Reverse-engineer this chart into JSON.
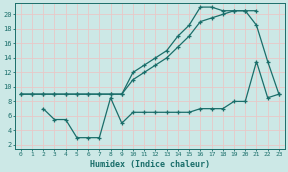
{
  "xlabel": "Humidex (Indice chaleur)",
  "bg_color": "#cce8e6",
  "grid_color": "#e8f8f8",
  "line_color": "#1a6e6a",
  "xlim": [
    -0.5,
    23.5
  ],
  "ylim": [
    1.5,
    21.5
  ],
  "xticks": [
    0,
    1,
    2,
    3,
    4,
    5,
    6,
    7,
    8,
    9,
    10,
    11,
    12,
    13,
    14,
    15,
    16,
    17,
    18,
    19,
    20,
    21,
    22,
    23
  ],
  "yticks": [
    2,
    4,
    6,
    8,
    10,
    12,
    14,
    16,
    18,
    20
  ],
  "line1_x": [
    0,
    1,
    2,
    3,
    4,
    5,
    6,
    7,
    8,
    9,
    10,
    11,
    12,
    13,
    14,
    15,
    16,
    17,
    18,
    19,
    20,
    21
  ],
  "line1_y": [
    9,
    9,
    9,
    9,
    9,
    9,
    9,
    9,
    9,
    9,
    12,
    13,
    14,
    15,
    17,
    18.5,
    21,
    21,
    20.5,
    20.5,
    20.5,
    20.5
  ],
  "line2_x": [
    0,
    1,
    2,
    3,
    4,
    5,
    6,
    7,
    8,
    9,
    10,
    11,
    12,
    13,
    14,
    15,
    16,
    17,
    18,
    19,
    20,
    21,
    22,
    23
  ],
  "line2_y": [
    9,
    9,
    9,
    9,
    9,
    9,
    9,
    9,
    9,
    9,
    11,
    12,
    13,
    14,
    15.5,
    17,
    19,
    19.5,
    20,
    20.5,
    20.5,
    18.5,
    13.5,
    9
  ],
  "line3_x": [
    2,
    3,
    4,
    5,
    6,
    7,
    8,
    9,
    10,
    11,
    12,
    13,
    14,
    15,
    16,
    17,
    18,
    19,
    20,
    21,
    22,
    23
  ],
  "line3_y": [
    7,
    5.5,
    5.5,
    3,
    3,
    3,
    8.5,
    5,
    6.5,
    6.5,
    6.5,
    6.5,
    6.5,
    6.5,
    7,
    7,
    7,
    8,
    8,
    13.5,
    8.5,
    9
  ]
}
